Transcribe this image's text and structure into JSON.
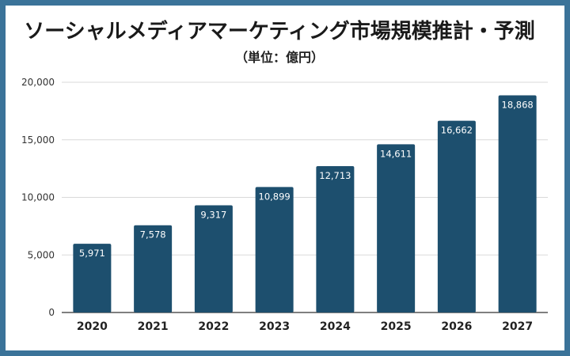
{
  "colors": {
    "border": "#3b7399",
    "background": "#ffffff",
    "bar": "#1d4f6e",
    "grid": "#d9d9d9",
    "axis": "#333333"
  },
  "chart_data": {
    "type": "bar",
    "title": "ソーシャルメディアマーケティング市場規模推計・予測",
    "subtitle": "（単位：億円）",
    "xlabel": "",
    "ylabel": "",
    "categories": [
      "2020",
      "2021",
      "2022",
      "2023",
      "2024",
      "2025",
      "2026",
      "2027"
    ],
    "values": [
      5971,
      7578,
      9317,
      10899,
      12713,
      14611,
      16662,
      18868
    ],
    "data_labels": [
      "5,971",
      "7,578",
      "9,317",
      "10,899",
      "12,713",
      "14,611",
      "16,662",
      "18,868"
    ],
    "ylim": [
      0,
      20000
    ],
    "yticks": [
      0,
      5000,
      10000,
      15000,
      20000
    ],
    "ytick_labels": [
      "0",
      "5,000",
      "10,000",
      "15,000",
      "20,000"
    ],
    "grid": true,
    "legend": "none"
  }
}
